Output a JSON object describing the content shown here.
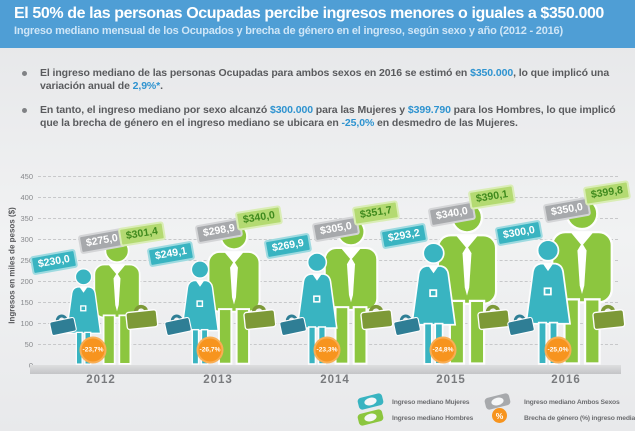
{
  "header": {
    "title": "El 50% de las personas Ocupadas percibe ingresos menores o iguales a $350.000",
    "subtitle": "Ingreso mediano mensual de los Ocupados y brecha de género en el ingreso, según sexo y año (2012 - 2016)"
  },
  "colors": {
    "header_bg": "#4F9ED5",
    "highlight": "#2E93D0",
    "mujeres": "#39B4C1",
    "mujeres_briefcase": "#2F7E95",
    "hombres": "#8CC63F",
    "hombres_briefcase": "#7D9937",
    "ambos": "#A7A9AC",
    "brecha": "#F7941E"
  },
  "bullets": [
    {
      "parts": [
        {
          "text": "El ingreso mediano de las personas Ocupadas para ambos sexos en 2016 se estimó en ",
          "highlight": false
        },
        {
          "text": "$350.000",
          "highlight": true
        },
        {
          "text": ", lo que implicó una variación anual de ",
          "highlight": false
        },
        {
          "text": "2,9%*",
          "highlight": true
        },
        {
          "text": ".",
          "highlight": false
        }
      ]
    },
    {
      "parts": [
        {
          "text": "En tanto, el ingreso mediano por sexo alcanzó ",
          "highlight": false
        },
        {
          "text": "$300.000",
          "highlight": true
        },
        {
          "text": " para las Mujeres y ",
          "highlight": false
        },
        {
          "text": "$399.790",
          "highlight": true
        },
        {
          "text": " para los Hombres, lo que implicó que la brecha de género en el ingreso mediano se ubicara en ",
          "highlight": false
        },
        {
          "text": "-25,0%",
          "highlight": true
        },
        {
          "text": " en desmedro de las Mujeres.",
          "highlight": false
        }
      ]
    }
  ],
  "chart_data": {
    "type": "bar",
    "title": "Ingreso mediano mensual de los Ocupados y brecha de género en el ingreso, según sexo y año (2012 - 2016)",
    "categories": [
      "2012",
      "2013",
      "2014",
      "2015",
      "2016"
    ],
    "series": [
      {
        "name": "Ingreso mediano Mujeres",
        "values": [
          230.0,
          249.1,
          269.9,
          293.2,
          300.0
        ],
        "labels": [
          "$230,0",
          "$249,1",
          "$269,9",
          "$293,2",
          "$300,0"
        ],
        "color": "#39B4C1"
      },
      {
        "name": "Ingreso mediano Ambos Sexos",
        "values": [
          275.0,
          298.9,
          305.0,
          340.0,
          350.0
        ],
        "labels": [
          "$275,0",
          "$298,9",
          "$305,0",
          "$340,0",
          "$350,0"
        ],
        "color": "#A7A9AC"
      },
      {
        "name": "Ingreso mediano Hombres",
        "values": [
          301.4,
          340.0,
          351.7,
          390.1,
          399.8
        ],
        "labels": [
          "$301,4",
          "$340,0",
          "$351,7",
          "$390,1",
          "$399,8"
        ],
        "color": "#8CC63F"
      }
    ],
    "gap_series": {
      "name": "Brecha de género (%) ingreso mediano",
      "values": [
        -23.7,
        -26.7,
        -23.3,
        -24.8,
        -25.0
      ],
      "labels": [
        "-23,7%",
        "-26,7%",
        "-23,3%",
        "-24,8%",
        "-25,0%"
      ],
      "color": "#F7941E"
    },
    "xlabel": "",
    "ylabel": "Ingresos en miles de pesos ($)",
    "ylim": [
      0,
      450
    ],
    "ytick_step": 50,
    "grid": "dashed-horizontal",
    "legend_position": "bottom-right",
    "style": "pictogram-figures"
  },
  "legend": {
    "percent_symbol": "%",
    "items": [
      {
        "icon": "tag-mujeres-icon",
        "label": "Ingreso mediano Mujeres",
        "color": "#39B4C1"
      },
      {
        "icon": "tag-hombres-icon",
        "label": "Ingreso mediano Hombres",
        "color": "#8CC63F"
      },
      {
        "icon": "tag-ambos-icon",
        "label": "Ingreso mediano Ambos Sexos",
        "color": "#A7A9AC"
      },
      {
        "icon": "percent-badge-icon",
        "label": "Brecha de género (%) ingreso mediano",
        "color": "#F7941E"
      }
    ]
  }
}
